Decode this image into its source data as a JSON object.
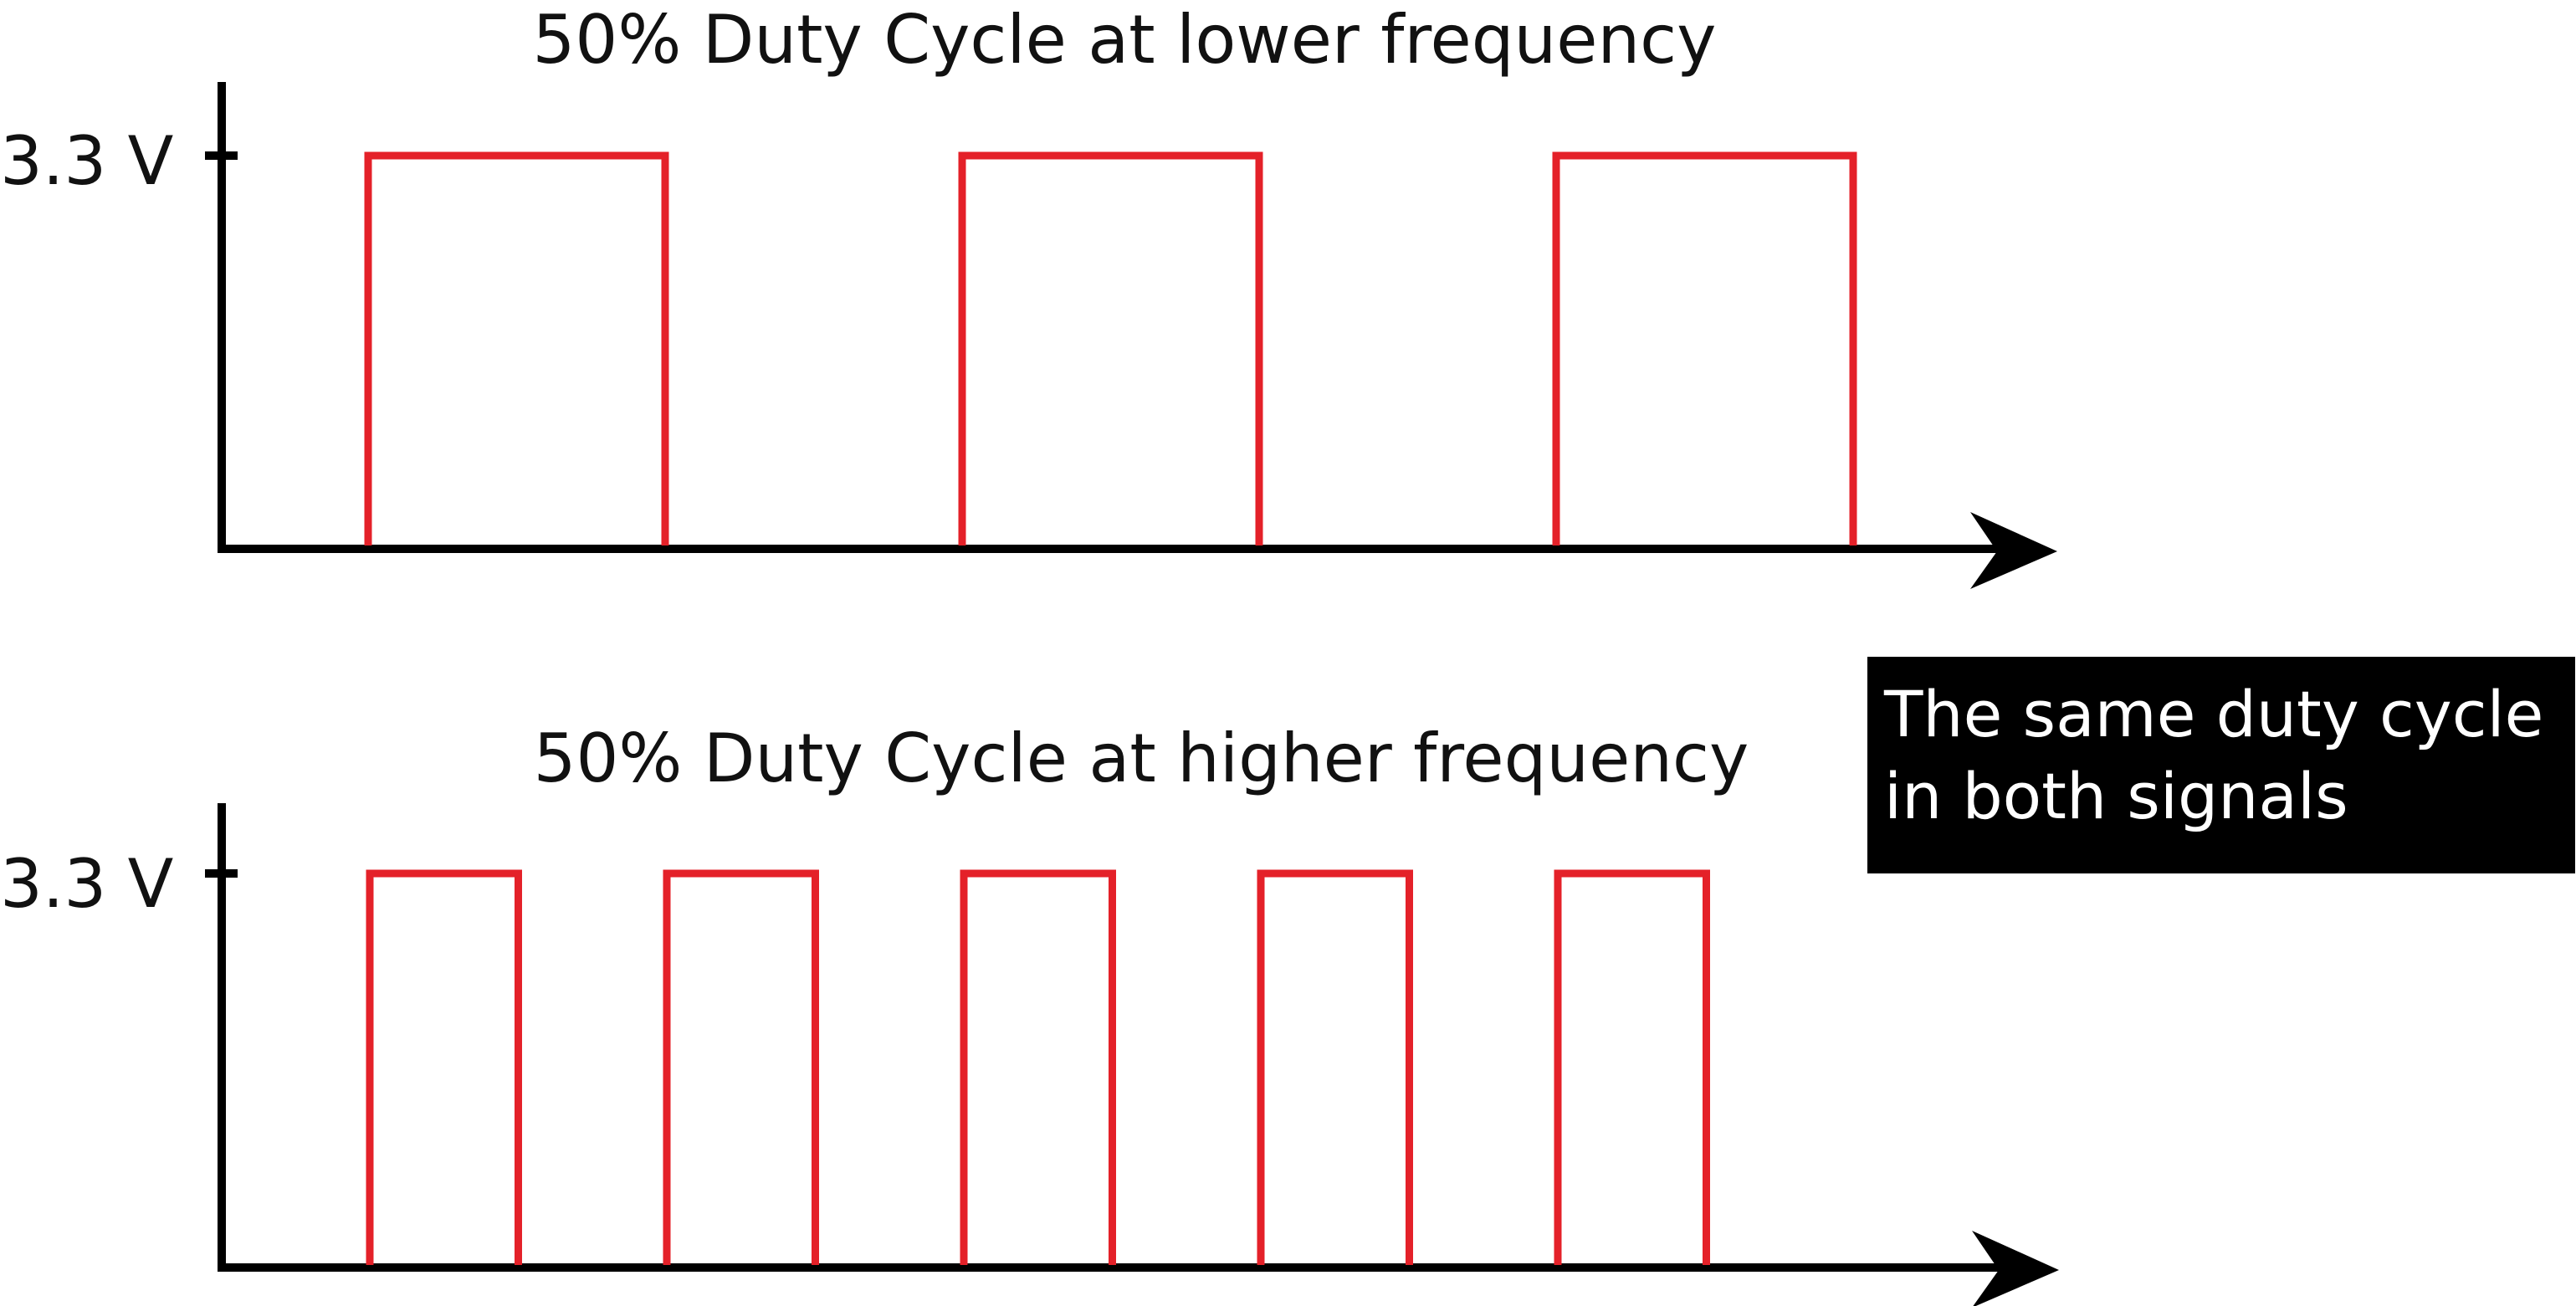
{
  "colors": {
    "signal": "#e42129",
    "axis": "#000000",
    "callout_bg": "#000000",
    "callout_text": "#ffffff"
  },
  "callout": {
    "text": "The same duty cycle\nin both signals"
  },
  "chart_data": [
    {
      "type": "line",
      "title": "50% Duty Cycle at lower frequency",
      "y_tick_label": "3.3 V",
      "y_high_value": 3.3,
      "y_units": "V",
      "duty_cycle": 0.5,
      "pulse_count": 3
    },
    {
      "type": "line",
      "title": "50% Duty Cycle at higher frequency",
      "y_tick_label": "3.3 V",
      "y_high_value": 3.3,
      "y_units": "V",
      "duty_cycle": 0.5,
      "pulse_count": 5
    }
  ]
}
